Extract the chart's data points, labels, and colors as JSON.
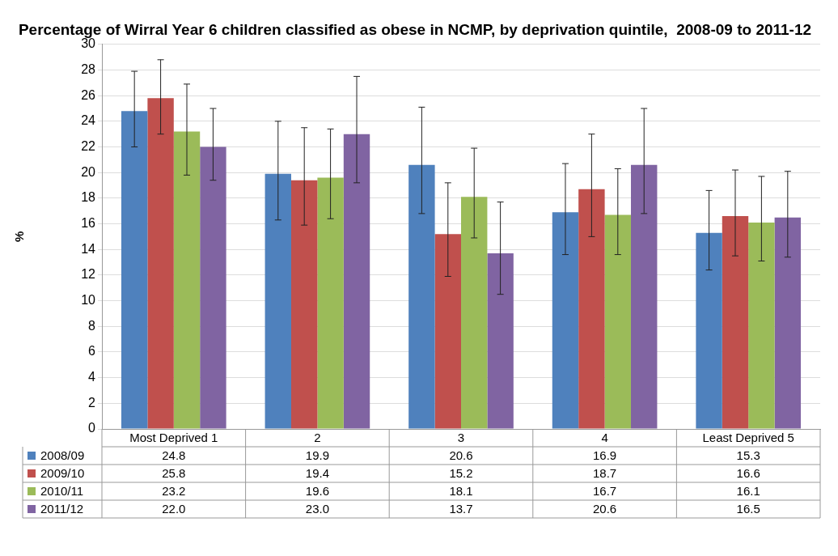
{
  "chart_data": {
    "type": "bar",
    "title": "Percentage of Wirral Year 6 children classified as obese in NCMP, by deprivation quintile,  2008-09 to 2011-12",
    "ylabel": "%",
    "categories": [
      "Most Deprived 1",
      "2",
      "3",
      "4",
      "Least Deprived 5"
    ],
    "series": [
      {
        "name": "2008/09",
        "color": "#4f81bd",
        "values": [
          24.8,
          19.9,
          20.6,
          16.9,
          15.3
        ],
        "value_labels": [
          "24.8",
          "19.9",
          "20.6",
          "16.9",
          "15.3"
        ],
        "errors": [
          [
            22.0,
            27.9
          ],
          [
            16.3,
            24.0
          ],
          [
            16.8,
            25.1
          ],
          [
            13.6,
            20.7
          ],
          [
            12.4,
            18.6
          ]
        ]
      },
      {
        "name": "2009/10",
        "color": "#c0504d",
        "values": [
          25.8,
          19.4,
          15.2,
          18.7,
          16.6
        ],
        "value_labels": [
          "25.8",
          "19.4",
          "15.2",
          "18.7",
          "16.6"
        ],
        "errors": [
          [
            23.0,
            28.8
          ],
          [
            15.9,
            23.5
          ],
          [
            11.9,
            19.2
          ],
          [
            15.0,
            23.0
          ],
          [
            13.5,
            20.2
          ]
        ]
      },
      {
        "name": "2010/11",
        "color": "#9bbb59",
        "values": [
          23.2,
          19.6,
          18.1,
          16.7,
          16.1
        ],
        "value_labels": [
          "23.2",
          "19.6",
          "18.1",
          "16.7",
          "16.1"
        ],
        "errors": [
          [
            19.8,
            26.9
          ],
          [
            16.4,
            23.4
          ],
          [
            14.9,
            21.9
          ],
          [
            13.6,
            20.3
          ],
          [
            13.1,
            19.7
          ]
        ]
      },
      {
        "name": "2011/12",
        "color": "#8064a2",
        "values": [
          22.0,
          23.0,
          13.7,
          20.6,
          16.5
        ],
        "value_labels": [
          "22.0",
          "23.0",
          "13.7",
          "20.6",
          "16.5"
        ],
        "errors": [
          [
            19.4,
            25.0
          ],
          [
            19.2,
            27.5
          ],
          [
            10.5,
            17.7
          ],
          [
            16.8,
            25.0
          ],
          [
            13.4,
            20.1
          ]
        ]
      }
    ],
    "ylim": [
      0,
      30
    ],
    "yticks": [
      0,
      2,
      4,
      6,
      8,
      10,
      12,
      14,
      16,
      18,
      20,
      22,
      24,
      26,
      28,
      30
    ],
    "grid": "y",
    "legend": "bottom"
  }
}
